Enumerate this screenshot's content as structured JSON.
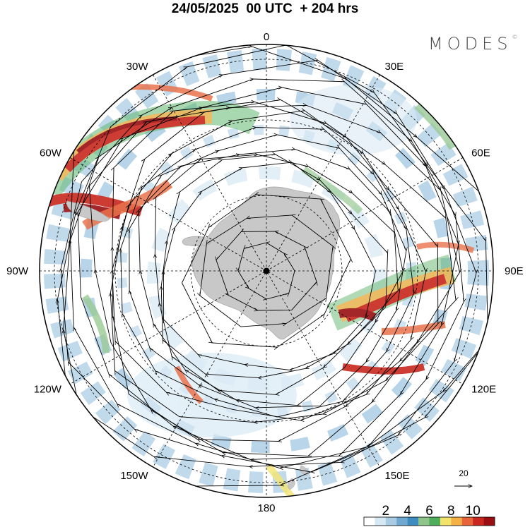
{
  "title": "24/05/2025  00 UTC  + 204 hrs",
  "logo": "MODES",
  "logo_mark": "©",
  "longitude_labels": [
    {
      "text": "0",
      "lon": 0
    },
    {
      "text": "30E",
      "lon": 30
    },
    {
      "text": "60E",
      "lon": 60
    },
    {
      "text": "90E",
      "lon": 90
    },
    {
      "text": "120E",
      "lon": 120
    },
    {
      "text": "150E",
      "lon": 150
    },
    {
      "text": "180",
      "lon": 180
    },
    {
      "text": "150W",
      "lon": -150
    },
    {
      "text": "120W",
      "lon": -120
    },
    {
      "text": "90W",
      "lon": -90
    },
    {
      "text": "60W",
      "lon": -60
    },
    {
      "text": "30W",
      "lon": -30
    }
  ],
  "reference_vector": {
    "label": "20"
  },
  "colorbar": {
    "tick_labels": [
      "2",
      "4",
      "6",
      "8",
      "10"
    ],
    "colors": [
      "#ffffff",
      "#d6e8f4",
      "#a9cbe4",
      "#6fa9d2",
      "#3f8cc0",
      "#8fc48a",
      "#4fae5c",
      "#f2e36a",
      "#f5b046",
      "#e8643a",
      "#c8281e",
      "#9a0f12"
    ]
  },
  "colors": {
    "land": "#c8c8c8",
    "background": "#ffffff",
    "streamline": "#000000"
  }
}
